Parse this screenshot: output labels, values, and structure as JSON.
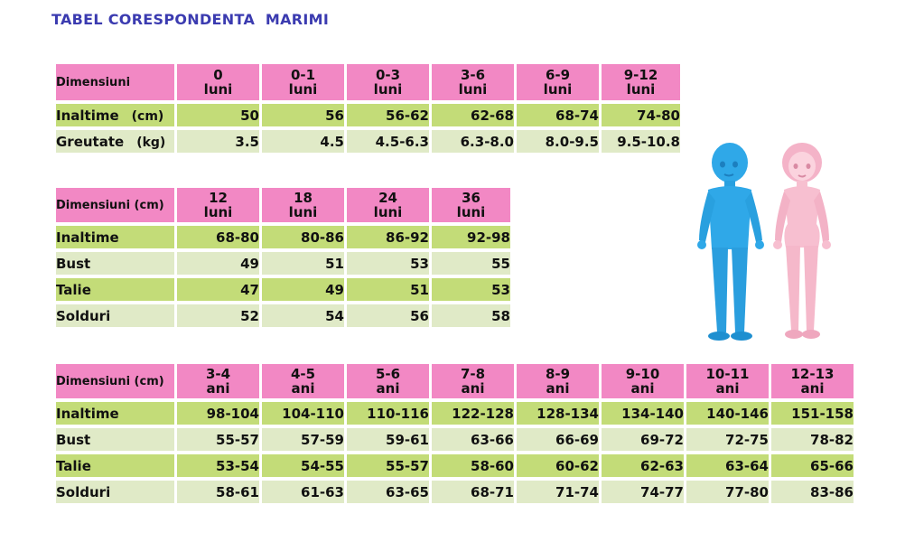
{
  "title": "TABEL CORESPONDENTA  MARIMI",
  "colors": {
    "header": "#f288c4",
    "row_green": "#c3dc78",
    "row_light": "#e0eac7",
    "title": "#3b3bb0"
  },
  "table1": {
    "corner": "Dimensiuni",
    "headers": [
      {
        "n": "0",
        "u": "luni"
      },
      {
        "n": "0-1",
        "u": "luni"
      },
      {
        "n": "0-3",
        "u": "luni"
      },
      {
        "n": "3-6",
        "u": "luni"
      },
      {
        "n": "6-9",
        "u": "luni"
      },
      {
        "n": "9-12",
        "u": "luni"
      }
    ],
    "rows": [
      {
        "label": "Inaltime",
        "unit": "(cm)",
        "values": [
          "50",
          "56",
          "56-62",
          "62-68",
          "68-74",
          "74-80"
        ]
      },
      {
        "label": "Greutate",
        "unit": "(kg)",
        "values": [
          "3.5",
          "4.5",
          "4.5-6.3",
          "6.3-8.0",
          "8.0-9.5",
          "9.5-10.8"
        ]
      }
    ]
  },
  "table2": {
    "corner": "Dimensiuni (cm)",
    "headers": [
      {
        "n": "12",
        "u": "luni"
      },
      {
        "n": "18",
        "u": "luni"
      },
      {
        "n": "24",
        "u": "luni"
      },
      {
        "n": "36",
        "u": "luni"
      }
    ],
    "rows": [
      {
        "label": "Inaltime",
        "values": [
          "68-80",
          "80-86",
          "86-92",
          "92-98"
        ]
      },
      {
        "label": "Bust",
        "values": [
          "49",
          "51",
          "53",
          "55"
        ]
      },
      {
        "label": "Talie",
        "values": [
          "47",
          "49",
          "51",
          "53"
        ]
      },
      {
        "label": "Solduri",
        "values": [
          "52",
          "54",
          "56",
          "58"
        ]
      }
    ]
  },
  "table3": {
    "corner": "Dimensiuni (cm)",
    "headers": [
      {
        "n": "3-4",
        "u": "ani"
      },
      {
        "n": "4-5",
        "u": "ani"
      },
      {
        "n": "5-6",
        "u": "ani"
      },
      {
        "n": "7-8",
        "u": "ani"
      },
      {
        "n": "8-9",
        "u": "ani"
      },
      {
        "n": "9-10",
        "u": "ani"
      },
      {
        "n": "10-11",
        "u": "ani"
      },
      {
        "n": "12-13",
        "u": "ani"
      }
    ],
    "rows": [
      {
        "label": "Inaltime",
        "values": [
          "98-104",
          "104-110",
          "110-116",
          "122-128",
          "128-134",
          "134-140",
          "140-146",
          "151-158"
        ]
      },
      {
        "label": "Bust",
        "values": [
          "55-57",
          "57-59",
          "59-61",
          "63-66",
          "66-69",
          "69-72",
          "72-75",
          "78-82"
        ]
      },
      {
        "label": "Talie",
        "values": [
          "53-54",
          "54-55",
          "55-57",
          "58-60",
          "60-62",
          "62-63",
          "63-64",
          "65-66"
        ]
      },
      {
        "label": "Solduri",
        "values": [
          "58-61",
          "61-63",
          "63-65",
          "68-71",
          "71-74",
          "74-77",
          "77-80",
          "83-86"
        ]
      }
    ]
  }
}
